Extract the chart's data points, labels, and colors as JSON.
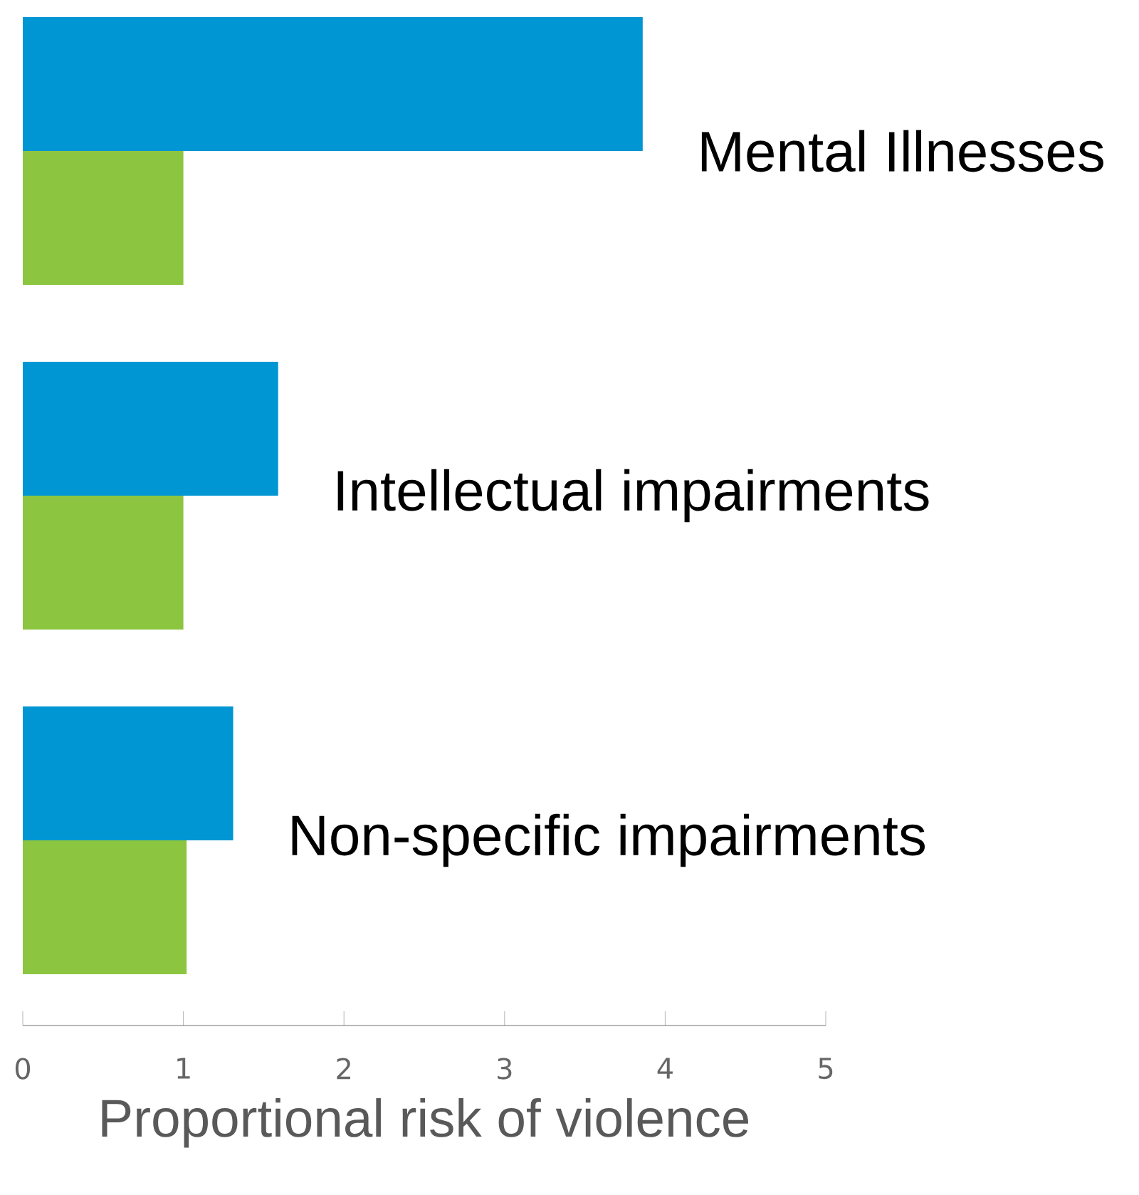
{
  "chart_data": {
    "type": "bar",
    "orientation": "horizontal",
    "xlabel": "Proportional risk of violence",
    "categories": [
      "Mental Illnesses",
      "Intellectual impairments",
      "Non-specific impairments"
    ],
    "series": [
      {
        "color": "#0095d3",
        "values": [
          3.86,
          1.59,
          1.31
        ]
      },
      {
        "color": "#8cc540",
        "values": [
          1.0,
          1.0,
          1.02
        ]
      }
    ],
    "xlim": [
      0,
      5
    ],
    "xticks": [
      0,
      1,
      2,
      3,
      4,
      5
    ]
  }
}
